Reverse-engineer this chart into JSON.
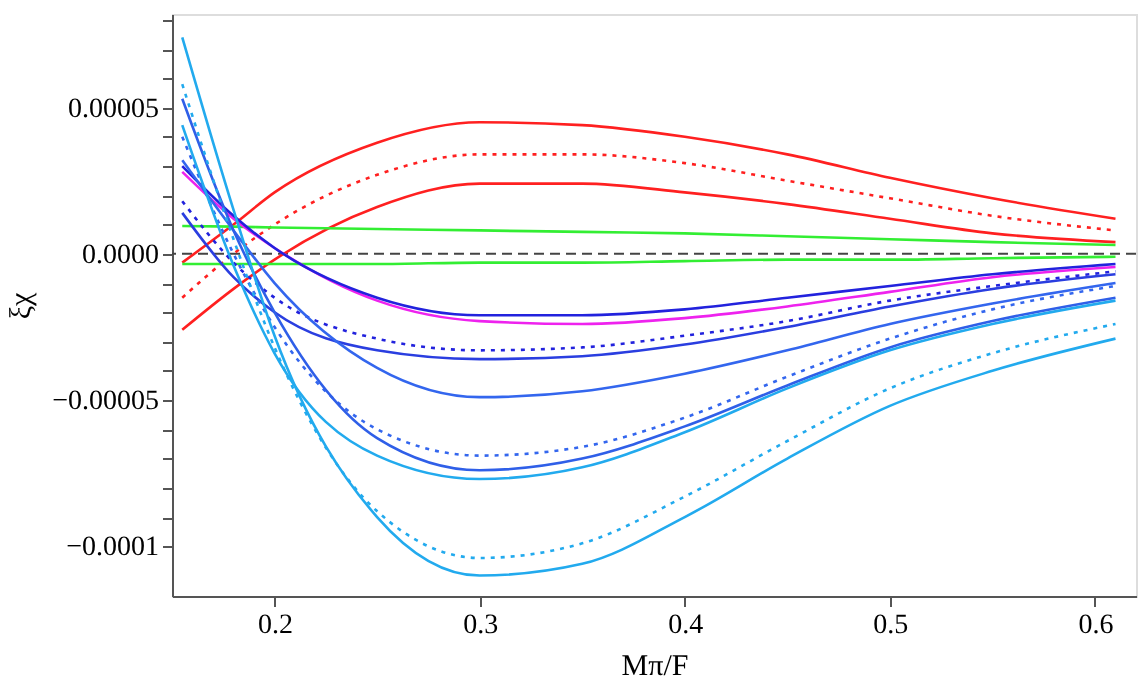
{
  "chart_data": {
    "type": "line",
    "xlabel": "Mπ/F",
    "ylabel": "ξχ",
    "x": [
      0.155,
      0.18,
      0.2,
      0.25,
      0.3,
      0.35,
      0.4,
      0.45,
      0.5,
      0.55,
      0.61
    ],
    "xlim": [
      0.15,
      0.62
    ],
    "ylim": [
      -0.000117,
      8.2e-05
    ],
    "xticks": [
      0.2,
      0.3,
      0.4,
      0.5,
      0.6
    ],
    "yticks": [
      {
        "value": -0.0001,
        "label": "−0.0001"
      },
      {
        "value": -9e-05,
        "label": null
      },
      {
        "value": -8e-05,
        "label": null
      },
      {
        "value": -7e-05,
        "label": null
      },
      {
        "value": -6e-05,
        "label": null
      },
      {
        "value": -5e-05,
        "label": "−0.00005"
      },
      {
        "value": -4e-05,
        "label": null
      },
      {
        "value": -3e-05,
        "label": null
      },
      {
        "value": -2e-05,
        "label": null
      },
      {
        "value": -1e-05,
        "label": null
      },
      {
        "value": 0,
        "label": "0.0000"
      },
      {
        "value": 1e-05,
        "label": null
      },
      {
        "value": 2e-05,
        "label": null
      },
      {
        "value": 3e-05,
        "label": null
      },
      {
        "value": 4e-05,
        "label": null
      },
      {
        "value": 5e-05,
        "label": "0.00005"
      },
      {
        "value": 6e-05,
        "label": null
      },
      {
        "value": 7e-05,
        "label": null
      },
      {
        "value": 8e-05,
        "label": null
      }
    ],
    "grid": false,
    "marker": "none",
    "ref_lines": [
      {
        "axis": "y",
        "value": 0,
        "color": "#444444",
        "line_style": "dashed"
      }
    ],
    "series": [
      {
        "color": "#ff2020",
        "line_style": "solid",
        "values": [
          -3e-06,
          1e-05,
          2.1e-05,
          3.8e-05,
          4.5e-05,
          4.4e-05,
          4e-05,
          3.4e-05,
          2.6e-05,
          1.9e-05,
          1.2e-05
        ]
      },
      {
        "color": "#ff2020",
        "line_style": "dotted",
        "values": [
          -1.5e-05,
          0,
          1e-05,
          2.7e-05,
          3.4e-05,
          3.4e-05,
          3.1e-05,
          2.5e-05,
          1.9e-05,
          1.3e-05,
          8e-06
        ]
      },
      {
        "color": "#ff2020",
        "line_style": "solid",
        "values": [
          -2.6e-05,
          -1.2e-05,
          -2e-06,
          1.6e-05,
          2.4e-05,
          2.4e-05,
          2.1e-05,
          1.7e-05,
          1.2e-05,
          7e-06,
          4e-06
        ]
      },
      {
        "color": "#33ee33",
        "line_style": "solid",
        "values": [
          9.5e-06,
          9.3e-06,
          9e-06,
          8.5e-06,
          8e-06,
          7.5e-06,
          7e-06,
          6e-06,
          5e-06,
          4e-06,
          3e-06
        ]
      },
      {
        "color": "#33ee33",
        "line_style": "solid",
        "values": [
          -3.5e-06,
          -3.5e-06,
          -3.5e-06,
          -3.5e-06,
          -3e-06,
          -3e-06,
          -2.5e-06,
          -2e-06,
          -2e-06,
          -1.5e-06,
          -1e-06
        ]
      },
      {
        "color": "#ee22ee",
        "line_style": "solid",
        "values": [
          2.8e-05,
          1.2e-05,
          2e-06,
          -1.6e-05,
          -2.3e-05,
          -2.4e-05,
          -2.2e-05,
          -1.8e-05,
          -1.3e-05,
          -8e-06,
          -4.5e-06
        ]
      },
      {
        "color": "#2222dd",
        "line_style": "solid",
        "values": [
          3e-05,
          1.3e-05,
          2e-06,
          -1.5e-05,
          -2.1e-05,
          -2.1e-05,
          -1.9e-05,
          -1.5e-05,
          -1.1e-05,
          -7e-06,
          -3.5e-06
        ]
      },
      {
        "color": "#2222dd",
        "line_style": "dotted",
        "values": [
          1.8e-05,
          -3e-06,
          -1.5e-05,
          -2.9e-05,
          -3.3e-05,
          -3.2e-05,
          -2.8e-05,
          -2.3e-05,
          -1.6e-05,
          -1.1e-05,
          -6e-06
        ]
      },
      {
        "color": "#2a3ee0",
        "line_style": "solid",
        "values": [
          1.4e-05,
          -8e-06,
          -2e-05,
          -3.3e-05,
          -3.6e-05,
          -3.5e-05,
          -3.1e-05,
          -2.5e-05,
          -1.8e-05,
          -1.2e-05,
          -7e-06
        ]
      },
      {
        "color": "#3366ee",
        "line_style": "solid",
        "values": [
          3.2e-05,
          8e-06,
          -1e-05,
          -3.9e-05,
          -4.9e-05,
          -4.7e-05,
          -4.1e-05,
          -3.3e-05,
          -2.4e-05,
          -1.7e-05,
          -1e-05
        ]
      },
      {
        "color": "#3366ee",
        "line_style": "dotted",
        "values": [
          4e-05,
          0,
          -2.5e-05,
          -6e-05,
          -6.9e-05,
          -6.6e-05,
          -5.6e-05,
          -4.2e-05,
          -2.9e-05,
          -1.9e-05,
          -1.1e-05
        ]
      },
      {
        "color": "#2f5fe8",
        "line_style": "solid",
        "values": [
          5.3e-05,
          8e-06,
          -2e-05,
          -6.3e-05,
          -7.4e-05,
          -7e-05,
          -5.9e-05,
          -4.5e-05,
          -3.2e-05,
          -2.3e-05,
          -1.5e-05
        ]
      },
      {
        "color": "#22aaee",
        "line_style": "solid",
        "values": [
          4.4e-05,
          -4e-06,
          -3.4e-05,
          -6.9e-05,
          -7.7e-05,
          -7.3e-05,
          -6.1e-05,
          -4.6e-05,
          -3.3e-05,
          -2.4e-05,
          -1.6e-05
        ]
      },
      {
        "color": "#22aaee",
        "line_style": "dotted",
        "values": [
          5.8e-05,
          5e-06,
          -3.2e-05,
          -8.8e-05,
          -0.000104,
          -9.9e-05,
          -8.3e-05,
          -6.4e-05,
          -4.6e-05,
          -3.4e-05,
          -2.4e-05
        ]
      },
      {
        "color": "#22aaee",
        "line_style": "solid",
        "values": [
          7.4e-05,
          1.5e-05,
          -2.8e-05,
          -9e-05,
          -0.00011,
          -0.000106,
          -9e-05,
          -7e-05,
          -5.2e-05,
          -4e-05,
          -2.9e-05
        ]
      }
    ]
  }
}
